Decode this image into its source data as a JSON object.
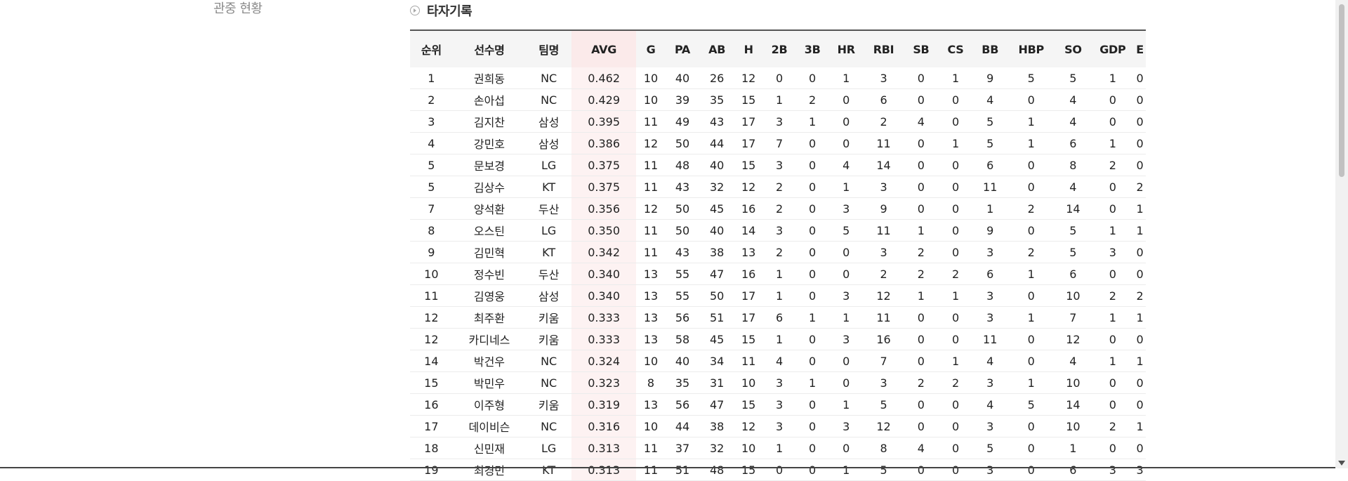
{
  "sidebar": {
    "current_item": "관중 현황"
  },
  "section": {
    "title": "타자기록"
  },
  "table": {
    "columns": [
      "순위",
      "선수명",
      "팀명",
      "AVG",
      "G",
      "PA",
      "AB",
      "H",
      "2B",
      "3B",
      "HR",
      "RBI",
      "SB",
      "CS",
      "BB",
      "HBP",
      "SO",
      "GDP",
      "E"
    ],
    "rows": [
      [
        "1",
        "권희동",
        "NC",
        "0.462",
        "10",
        "40",
        "26",
        "12",
        "0",
        "0",
        "1",
        "3",
        "0",
        "1",
        "9",
        "5",
        "5",
        "1",
        "0"
      ],
      [
        "2",
        "손아섭",
        "NC",
        "0.429",
        "10",
        "39",
        "35",
        "15",
        "1",
        "2",
        "0",
        "6",
        "0",
        "0",
        "4",
        "0",
        "4",
        "0",
        "0"
      ],
      [
        "3",
        "김지찬",
        "삼성",
        "0.395",
        "11",
        "49",
        "43",
        "17",
        "3",
        "1",
        "0",
        "2",
        "4",
        "0",
        "5",
        "1",
        "4",
        "0",
        "0"
      ],
      [
        "4",
        "강민호",
        "삼성",
        "0.386",
        "12",
        "50",
        "44",
        "17",
        "7",
        "0",
        "0",
        "11",
        "0",
        "1",
        "5",
        "1",
        "6",
        "1",
        "0"
      ],
      [
        "5",
        "문보경",
        "LG",
        "0.375",
        "11",
        "48",
        "40",
        "15",
        "3",
        "0",
        "4",
        "14",
        "0",
        "0",
        "6",
        "0",
        "8",
        "2",
        "0"
      ],
      [
        "5",
        "김상수",
        "KT",
        "0.375",
        "11",
        "43",
        "32",
        "12",
        "2",
        "0",
        "1",
        "3",
        "0",
        "0",
        "11",
        "0",
        "4",
        "0",
        "2"
      ],
      [
        "7",
        "양석환",
        "두산",
        "0.356",
        "12",
        "50",
        "45",
        "16",
        "2",
        "0",
        "3",
        "9",
        "0",
        "0",
        "1",
        "2",
        "14",
        "0",
        "1"
      ],
      [
        "8",
        "오스틴",
        "LG",
        "0.350",
        "11",
        "50",
        "40",
        "14",
        "3",
        "0",
        "5",
        "11",
        "1",
        "0",
        "9",
        "0",
        "5",
        "1",
        "1"
      ],
      [
        "9",
        "김민혁",
        "KT",
        "0.342",
        "11",
        "43",
        "38",
        "13",
        "2",
        "0",
        "0",
        "3",
        "2",
        "0",
        "3",
        "2",
        "5",
        "3",
        "0"
      ],
      [
        "10",
        "정수빈",
        "두산",
        "0.340",
        "13",
        "55",
        "47",
        "16",
        "1",
        "0",
        "0",
        "2",
        "2",
        "2",
        "6",
        "1",
        "6",
        "0",
        "0"
      ],
      [
        "11",
        "김영웅",
        "삼성",
        "0.340",
        "13",
        "55",
        "50",
        "17",
        "1",
        "0",
        "3",
        "12",
        "1",
        "1",
        "3",
        "0",
        "10",
        "2",
        "2"
      ],
      [
        "12",
        "최주환",
        "키움",
        "0.333",
        "13",
        "56",
        "51",
        "17",
        "6",
        "1",
        "1",
        "11",
        "0",
        "0",
        "3",
        "1",
        "7",
        "1",
        "1"
      ],
      [
        "12",
        "카디네스",
        "키움",
        "0.333",
        "13",
        "58",
        "45",
        "15",
        "1",
        "0",
        "3",
        "16",
        "0",
        "0",
        "11",
        "0",
        "12",
        "0",
        "0"
      ],
      [
        "14",
        "박건우",
        "NC",
        "0.324",
        "10",
        "40",
        "34",
        "11",
        "4",
        "0",
        "0",
        "7",
        "0",
        "1",
        "4",
        "0",
        "4",
        "1",
        "1"
      ],
      [
        "15",
        "박민우",
        "NC",
        "0.323",
        "8",
        "35",
        "31",
        "10",
        "3",
        "1",
        "0",
        "3",
        "2",
        "2",
        "3",
        "1",
        "10",
        "0",
        "0"
      ],
      [
        "16",
        "이주형",
        "키움",
        "0.319",
        "13",
        "56",
        "47",
        "15",
        "3",
        "0",
        "1",
        "5",
        "0",
        "0",
        "4",
        "5",
        "14",
        "0",
        "0"
      ],
      [
        "17",
        "데이비슨",
        "NC",
        "0.316",
        "10",
        "44",
        "38",
        "12",
        "3",
        "0",
        "3",
        "12",
        "0",
        "0",
        "3",
        "0",
        "10",
        "2",
        "1"
      ],
      [
        "18",
        "신민재",
        "LG",
        "0.313",
        "11",
        "37",
        "32",
        "10",
        "1",
        "0",
        "0",
        "8",
        "4",
        "0",
        "5",
        "0",
        "1",
        "0",
        "0"
      ],
      [
        "19",
        "최경민",
        "KT",
        "0.313",
        "11",
        "51",
        "48",
        "15",
        "0",
        "0",
        "1",
        "5",
        "0",
        "0",
        "3",
        "0",
        "6",
        "3",
        "3"
      ]
    ]
  }
}
